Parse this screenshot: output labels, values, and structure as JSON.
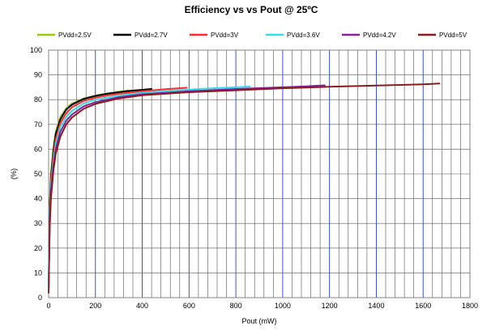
{
  "chart_data": {
    "type": "line",
    "title": "Efficiency vs  vs Pout @  25ºC",
    "xlabel": "Pout (mW)",
    "ylabel": "(%)",
    "xlim": [
      0,
      1800
    ],
    "ylim": [
      0,
      100
    ],
    "x_ticks": [
      0,
      200,
      400,
      600,
      800,
      1000,
      1200,
      1400,
      1600,
      1800
    ],
    "y_ticks": [
      0,
      10,
      20,
      30,
      40,
      50,
      60,
      70,
      80,
      90,
      100
    ],
    "x_minor_step": 40,
    "grid": true,
    "legend_position": "top",
    "series": [
      {
        "name": "PVdd=2.5V",
        "color": "#99cc00",
        "x": [
          0,
          5,
          10,
          20,
          30,
          50,
          75,
          100,
          150,
          200,
          250,
          300,
          340
        ],
        "y": [
          2,
          38,
          50,
          60,
          67,
          73,
          76.5,
          78.5,
          80.5,
          81.7,
          82.5,
          83.2,
          83.8
        ]
      },
      {
        "name": "PVdd=2.7V",
        "color": "#000000",
        "x": [
          0,
          5,
          10,
          20,
          30,
          50,
          75,
          100,
          150,
          200,
          250,
          300,
          350,
          400,
          440
        ],
        "y": [
          2,
          37,
          49,
          59,
          66,
          72,
          76,
          78,
          80.3,
          81.5,
          82.4,
          83,
          83.6,
          84,
          84.3
        ]
      },
      {
        "name": "PVdd=3V",
        "color": "#ff2a2a",
        "x": [
          0,
          5,
          10,
          20,
          30,
          50,
          75,
          100,
          150,
          200,
          250,
          300,
          400,
          500,
          590
        ],
        "y": [
          2,
          35,
          47,
          57,
          64,
          70.5,
          74.5,
          77,
          79.5,
          80.8,
          81.7,
          82.4,
          83.4,
          84.2,
          84.8
        ]
      },
      {
        "name": "PVdd=3.6V",
        "color": "#33ddee",
        "x": [
          0,
          5,
          10,
          20,
          30,
          50,
          75,
          100,
          150,
          200,
          300,
          400,
          500,
          600,
          700,
          800,
          860
        ],
        "y": [
          2,
          33,
          45,
          55,
          62,
          69,
          73,
          75.5,
          78.5,
          80,
          81.7,
          82.8,
          83.5,
          84.1,
          84.6,
          85,
          85.3
        ]
      },
      {
        "name": "PVdd=4.2V",
        "color": "#882299",
        "x": [
          0,
          5,
          10,
          20,
          30,
          50,
          75,
          100,
          150,
          200,
          300,
          400,
          600,
          800,
          1000,
          1100,
          1180
        ],
        "y": [
          2,
          31,
          43,
          53,
          60,
          67,
          71.5,
          74,
          77.3,
          79,
          81,
          82.2,
          83.4,
          84.3,
          85,
          85.4,
          85.8
        ]
      },
      {
        "name": "PVdd=5V",
        "color": "#8b1a1a",
        "x": [
          0,
          5,
          10,
          20,
          30,
          50,
          75,
          100,
          150,
          200,
          300,
          400,
          600,
          800,
          1000,
          1200,
          1400,
          1600,
          1670
        ],
        "y": [
          2,
          29,
          40,
          51,
          58,
          65,
          70,
          72.8,
          76.3,
          78.3,
          80.5,
          81.8,
          83,
          83.8,
          84.6,
          85.2,
          85.7,
          86.2,
          86.5
        ]
      }
    ]
  }
}
